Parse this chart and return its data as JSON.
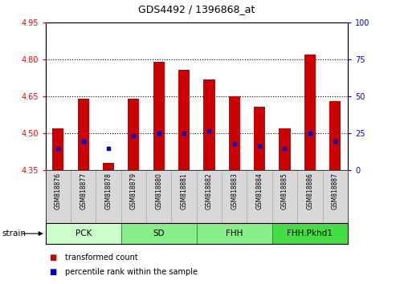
{
  "title": "GDS4492 / 1396868_at",
  "samples": [
    "GSM818876",
    "GSM818877",
    "GSM818878",
    "GSM818879",
    "GSM818880",
    "GSM818881",
    "GSM818882",
    "GSM818883",
    "GSM818884",
    "GSM818885",
    "GSM818886",
    "GSM818887"
  ],
  "red_bar_values": [
    4.52,
    4.64,
    4.38,
    4.64,
    4.79,
    4.76,
    4.72,
    4.65,
    4.61,
    4.52,
    4.82,
    4.63
  ],
  "blue_marker_values": [
    4.44,
    4.47,
    4.44,
    4.49,
    4.5,
    4.5,
    4.51,
    4.46,
    4.45,
    4.44,
    4.5,
    4.47
  ],
  "bar_bottom": 4.35,
  "ylim_left": [
    4.35,
    4.95
  ],
  "ylim_right": [
    0,
    100
  ],
  "yticks_left": [
    4.35,
    4.5,
    4.65,
    4.8,
    4.95
  ],
  "yticks_right": [
    0,
    25,
    50,
    75,
    100
  ],
  "dotted_lines": [
    4.5,
    4.65,
    4.8
  ],
  "groups": [
    {
      "label": "PCK",
      "start": 0,
      "end": 3,
      "color": "#ccffcc"
    },
    {
      "label": "SD",
      "start": 3,
      "end": 6,
      "color": "#88ee88"
    },
    {
      "label": "FHH",
      "start": 6,
      "end": 9,
      "color": "#88ee88"
    },
    {
      "label": "FHH.Pkhd1",
      "start": 9,
      "end": 12,
      "color": "#44dd44"
    }
  ],
  "bar_color": "#cc0000",
  "marker_color": "#0000cc",
  "legend_transformed": "transformed count",
  "legend_percentile": "percentile rank within the sample",
  "strain_label": "strain"
}
